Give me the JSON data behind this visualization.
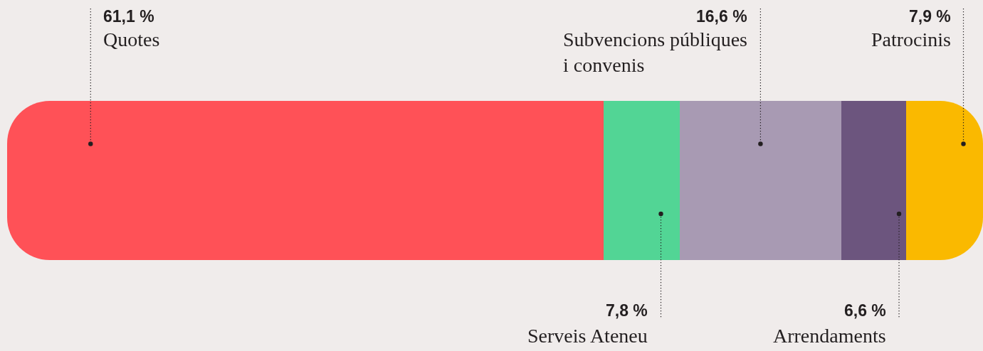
{
  "chart_data": {
    "type": "bar",
    "orientation": "horizontal",
    "stacked": true,
    "categories": [
      null
    ],
    "xlim": [
      0,
      100
    ],
    "series": [
      {
        "name": "Quotes",
        "color": "#ff5157",
        "values": [
          61.1
        ],
        "value_labels": [
          "61,1 %"
        ]
      },
      {
        "name": "Serveis Ateneu",
        "color": "#52d595",
        "values": [
          7.8
        ],
        "value_labels": [
          "7,8 %"
        ]
      },
      {
        "name": "Subvencions públiques i convenis",
        "color": "#a89ab3",
        "values": [
          16.6
        ],
        "value_labels": [
          "16,6 %"
        ]
      },
      {
        "name": "Arrendaments",
        "color": "#6c557e",
        "values": [
          6.6
        ],
        "value_labels": [
          "6,6 %"
        ]
      },
      {
        "name": "Patrocinis",
        "color": "#fab900",
        "values": [
          7.9
        ],
        "value_labels": [
          "7,9 %"
        ]
      }
    ]
  }
}
